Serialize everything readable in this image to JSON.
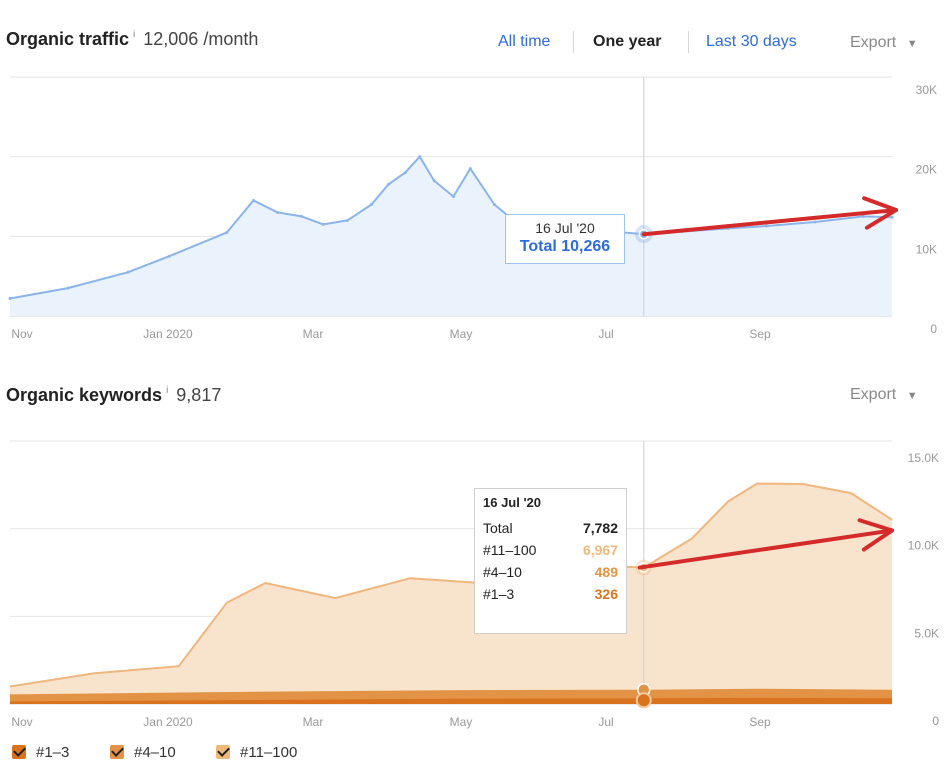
{
  "traffic": {
    "title": "Organic traffic",
    "info_icon": "i",
    "metric": "12,006 /month",
    "ranges": [
      "All time",
      "One year",
      "Last 30 days"
    ],
    "active_range": "One year",
    "export_label": "Export",
    "tooltip": {
      "date": "16 Jul '20",
      "total_text": "Total 10,266"
    }
  },
  "keywords": {
    "title": "Organic keywords",
    "info_icon": "i",
    "metric": "9,817",
    "export_label": "Export",
    "tooltip": {
      "date": "16 Jul '20",
      "rows": [
        {
          "label": "Total",
          "value": "7,782"
        },
        {
          "label": "#11–100",
          "value": "6,967"
        },
        {
          "label": "#4–10",
          "value": "489"
        },
        {
          "label": "#1–3",
          "value": "326"
        }
      ]
    },
    "legend": [
      "#1–3",
      "#4–10",
      "#11–100"
    ]
  },
  "colors": {
    "traffic_line": "#8ab4ea",
    "traffic_fill": "#eaf2fc",
    "kw_11_100_fill": "#f8e3cc",
    "kw_11_100_line": "#efb77d",
    "kw_4_10": "#e39346",
    "kw_1_3": "#d9731f",
    "annotation_arrow": "#d42a2a",
    "link": "#2d6cdf"
  },
  "chart_data": [
    {
      "type": "area",
      "title": "Organic traffic",
      "x_ticks": [
        "Nov",
        "Jan 2020",
        "Mar",
        "May",
        "Jul",
        "Sep"
      ],
      "y_ticks": [
        "30K",
        "20K",
        "10K",
        "0"
      ],
      "ylim": [
        0,
        30000
      ],
      "grid": true,
      "series": [
        {
          "name": "Total",
          "x": [
            "2019-10-27",
            "2019-11-20",
            "2019-12-15",
            "2020-01-01",
            "2020-01-25",
            "2020-02-05",
            "2020-02-15",
            "2020-02-25",
            "2020-03-05",
            "2020-03-15",
            "2020-03-25",
            "2020-04-01",
            "2020-04-08",
            "2020-04-14",
            "2020-04-20",
            "2020-04-28",
            "2020-05-05",
            "2020-05-15",
            "2020-05-25",
            "2020-06-10",
            "2020-06-25",
            "2020-07-16",
            "2020-08-01",
            "2020-08-20",
            "2020-09-05",
            "2020-09-25",
            "2020-10-15",
            "2020-10-27"
          ],
          "y": [
            2200,
            3500,
            5500,
            7500,
            10500,
            14500,
            13000,
            12500,
            11500,
            12000,
            14000,
            16500,
            18000,
            20000,
            17000,
            15000,
            18500,
            14000,
            11500,
            11200,
            10800,
            10266,
            10600,
            11000,
            11300,
            11800,
            12500,
            12400
          ]
        }
      ],
      "annotation": {
        "type": "arrow",
        "from_x": "2020-07-16",
        "from_y": 10266,
        "to_x": "2020-10-27",
        "to_y": 12800
      }
    },
    {
      "type": "area",
      "title": "Organic keywords",
      "x_ticks": [
        "Nov",
        "Jan 2020",
        "Mar",
        "May",
        "Jul",
        "Sep"
      ],
      "y_ticks": [
        "15.0K",
        "10.0K",
        "5.0K",
        "0"
      ],
      "ylim": [
        0,
        15000
      ],
      "grid": true,
      "stacked": true,
      "series": [
        {
          "name": "#1–3",
          "x": [
            "2019-10-27",
            "2020-01-01",
            "2020-03-01",
            "2020-05-01",
            "2020-07-16",
            "2020-09-01",
            "2020-10-27"
          ],
          "y": [
            150,
            200,
            250,
            300,
            326,
            350,
            330
          ]
        },
        {
          "name": "#4–10",
          "x": [
            "2019-10-27",
            "2020-01-01",
            "2020-03-01",
            "2020-05-01",
            "2020-07-16",
            "2020-09-01",
            "2020-10-27"
          ],
          "y": [
            400,
            450,
            480,
            490,
            489,
            520,
            480
          ]
        },
        {
          "name": "#11–100",
          "x": [
            "2019-10-27",
            "2019-12-01",
            "2020-01-05",
            "2020-01-25",
            "2020-02-10",
            "2020-03-10",
            "2020-04-10",
            "2020-05-10",
            "2020-06-10",
            "2020-07-16",
            "2020-08-05",
            "2020-08-20",
            "2020-09-01",
            "2020-09-20",
            "2020-10-10",
            "2020-10-27"
          ],
          "y": [
            450,
            1150,
            1500,
            5100,
            6200,
            5300,
            6400,
            6100,
            7200,
            6967,
            8600,
            10700,
            11700,
            11700,
            11200,
            9700
          ]
        }
      ],
      "annotation": {
        "type": "arrow",
        "from_x": "2020-07-16",
        "from_y": 7782,
        "to_x": "2020-10-27",
        "to_y": 9900
      }
    }
  ]
}
